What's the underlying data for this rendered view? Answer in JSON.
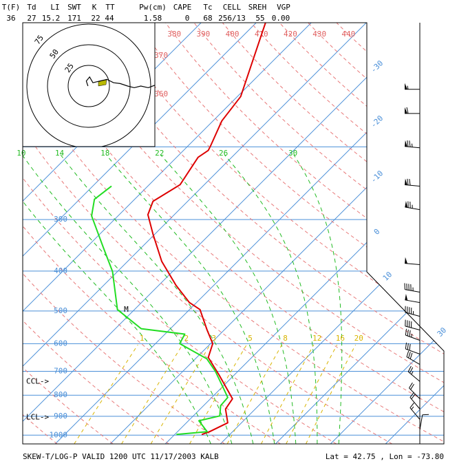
{
  "chart_data": {
    "type": "skewt",
    "header": {
      "labels": [
        "T(F)",
        "Td",
        "LI",
        "SWT",
        "K",
        "TT",
        "Pw(cm)",
        "CAPE",
        "Tc",
        "CELL",
        "SREH",
        "VGP"
      ],
      "values": [
        "36",
        "27",
        "15.2",
        "171",
        "22",
        "44",
        "1.58",
        "0",
        "68",
        "256/13",
        "55",
        "0.00"
      ]
    },
    "footer_left": "SKEW-T/LOG-P VALID 1200 UTC 11/17/2003   KALB",
    "footer_right": "Lat =   42.75 , Lon =  -73.80",
    "ylim": [
      1050,
      100
    ],
    "log_y": true,
    "xlim": [
      -25.9,
      50.6
    ],
    "yticks": [
      300,
      400,
      500,
      600,
      700,
      800,
      900,
      1000
    ],
    "extra_isobars": [
      100,
      200
    ],
    "isotherms": [
      -100,
      -90,
      -80,
      -70,
      -60,
      -50,
      -40,
      -30,
      -20,
      -10,
      0,
      10,
      20,
      30,
      40
    ],
    "isotherm_labels": [
      -30,
      -20,
      -10,
      0,
      10,
      30
    ],
    "dry_adiabats": [
      250,
      260,
      270,
      280,
      290,
      300,
      310,
      320,
      330,
      340,
      350,
      360,
      370,
      380,
      390,
      400,
      410,
      420,
      430,
      440
    ],
    "dry_adiabat_labels": [
      360,
      370,
      380,
      390,
      400,
      410,
      420,
      430,
      440
    ],
    "moist_adiabats": [
      6,
      10,
      14,
      18,
      22,
      26,
      30
    ],
    "mixing_ratios": [
      1,
      2,
      3,
      5,
      8,
      12,
      16,
      20
    ],
    "temperature": {
      "color": "#dd0000",
      "pressure": [
        100,
        151,
        173,
        199,
        204,
        212,
        247,
        271,
        292,
        325,
        379,
        433,
        477,
        496,
        556,
        600,
        648,
        714,
        816,
        864,
        933,
        981,
        996
      ],
      "values": [
        -58.3,
        -49.4,
        -48.4,
        -45.9,
        -45.5,
        -46.1,
        -44.4,
        -46.3,
        -44.8,
        -40.4,
        -33.8,
        -26.9,
        -21.3,
        -18.1,
        -13.1,
        -9.6,
        -7.9,
        -2.8,
        4.0,
        4.6,
        7.5,
        5.8,
        4.9
      ]
    },
    "dewpoint": {
      "color": "#22dd22",
      "pressure": [
        249,
        268,
        294,
        351,
        401,
        496,
        552,
        569,
        600,
        653,
        700,
        756,
        810,
        848,
        898,
        923,
        981,
        996
      ],
      "values": [
        -56.6,
        -57.3,
        -54.8,
        -46.9,
        -40.9,
        -33.1,
        -25.3,
        -16.4,
        -15.6,
        -7.9,
        -4.1,
        -0.4,
        2.9,
        3.1,
        4.8,
        1.9,
        5.4,
        0.3
      ]
    },
    "wind_barbs": {
      "pressure": [
        145,
        166,
        201,
        249,
        284,
        386,
        450,
        477,
        515,
        556,
        589,
        636,
        674,
        741,
        816,
        864,
        916,
        970
      ],
      "direction": [
        270,
        270,
        275,
        275,
        280,
        275,
        280,
        280,
        285,
        285,
        290,
        290,
        300,
        310,
        315,
        320,
        320,
        10
      ],
      "speed": [
        55,
        60,
        75,
        70,
        75,
        50,
        45,
        50,
        45,
        40,
        35,
        30,
        30,
        25,
        20,
        20,
        15,
        10
      ]
    },
    "hodograph": {
      "rings": [
        25,
        50,
        75
      ],
      "u": [
        -1,
        -3,
        1,
        5,
        13,
        22,
        30,
        38,
        47,
        55,
        63,
        72,
        80
      ],
      "v": [
        0,
        6,
        11,
        4,
        6,
        8,
        4,
        3,
        0,
        -2,
        0,
        -2,
        1
      ]
    },
    "markers": [
      {
        "label": "CCL->",
        "pressure": 741
      },
      {
        "label": "LCL->",
        "pressure": 905
      }
    ],
    "m_marker": {
      "label": "M",
      "pressure": 496,
      "temperature": -31.5
    }
  }
}
